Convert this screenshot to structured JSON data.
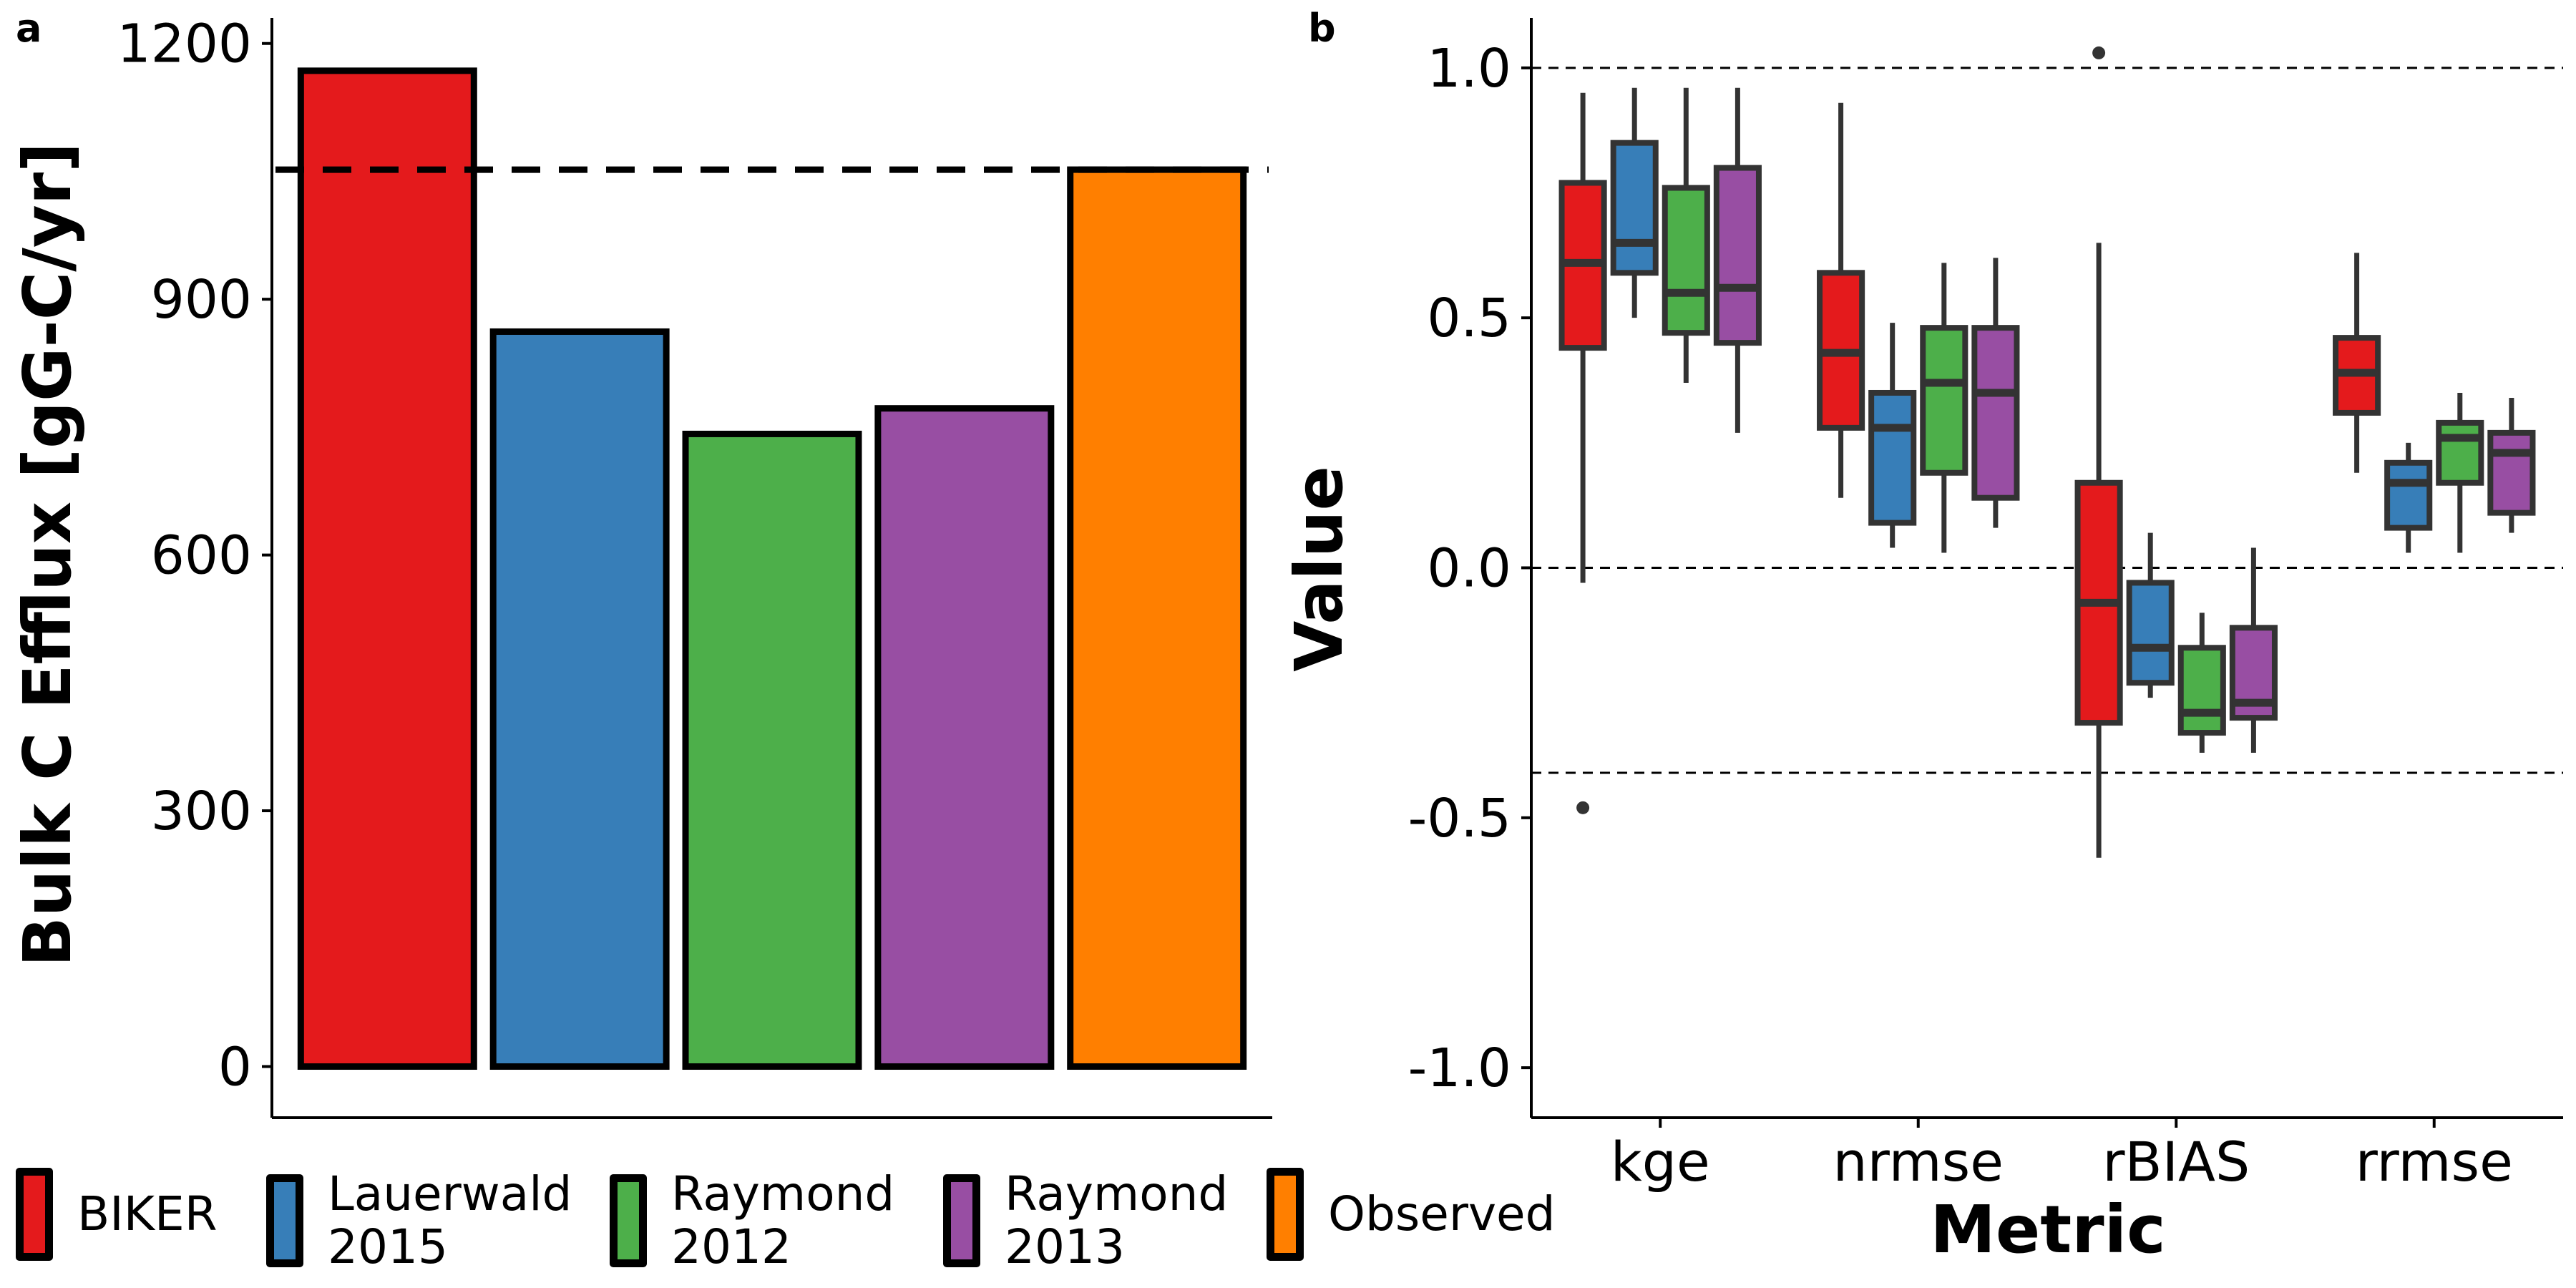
{
  "chart_data": [
    {
      "panel_label": "a",
      "type": "bar",
      "ylabel": "Bulk C Efflux [gG-C/yr]",
      "xlabel": "",
      "ylim": [
        -60,
        1230
      ],
      "yticks": [
        0,
        300,
        600,
        900,
        1200
      ],
      "ytick_labels": [
        "0",
        "300",
        "600",
        "900",
        "1200"
      ],
      "categories": [
        "BIKER",
        "Lauerwald 2015",
        "Raymond 2012",
        "Raymond 2013",
        "Observed"
      ],
      "values": [
        1168,
        862,
        742,
        772,
        1052
      ],
      "colors": [
        "#e41a1c",
        "#377eb8",
        "#4daf4a",
        "#984ea3",
        "#ff7f00"
      ],
      "reference_line": 1052,
      "grid": false
    },
    {
      "panel_label": "b",
      "type": "box",
      "xlabel": "Metric",
      "ylabel": "Value",
      "ylim": [
        -1.1,
        1.1
      ],
      "yticks": [
        -1.0,
        -0.5,
        0.0,
        0.5,
        1.0
      ],
      "ytick_labels": [
        "-1.0",
        "-0.5",
        "0.0",
        "0.5",
        "1.0"
      ],
      "categories": [
        "kge",
        "nrmse",
        "rBIAS",
        "rrmse"
      ],
      "reference_lines": [
        1.0,
        0.0,
        -0.41
      ],
      "grid": false,
      "series": [
        {
          "name": "BIKER",
          "color": "#e41a1c",
          "boxes": [
            {
              "whislo": -0.03,
              "q1": 0.44,
              "med": 0.61,
              "q3": 0.77,
              "whishi": 0.95,
              "fliers": [
                -0.48
              ]
            },
            {
              "whislo": 0.14,
              "q1": 0.28,
              "med": 0.43,
              "q3": 0.59,
              "whishi": 0.93,
              "fliers": []
            },
            {
              "whislo": -0.58,
              "q1": -0.31,
              "med": -0.07,
              "q3": 0.17,
              "whishi": 0.65,
              "fliers": [
                1.03
              ]
            },
            {
              "whislo": 0.19,
              "q1": 0.31,
              "med": 0.39,
              "q3": 0.46,
              "whishi": 0.63,
              "fliers": []
            }
          ]
        },
        {
          "name": "Lauerwald 2015",
          "color": "#377eb8",
          "boxes": [
            {
              "whislo": 0.5,
              "q1": 0.59,
              "med": 0.65,
              "q3": 0.85,
              "whishi": 0.96,
              "fliers": []
            },
            {
              "whislo": 0.04,
              "q1": 0.09,
              "med": 0.28,
              "q3": 0.35,
              "whishi": 0.49,
              "fliers": []
            },
            {
              "whislo": -0.26,
              "q1": -0.23,
              "med": -0.16,
              "q3": -0.03,
              "whishi": 0.07,
              "fliers": []
            },
            {
              "whislo": 0.03,
              "q1": 0.08,
              "med": 0.17,
              "q3": 0.21,
              "whishi": 0.25,
              "fliers": []
            }
          ]
        },
        {
          "name": "Raymond 2012",
          "color": "#4daf4a",
          "boxes": [
            {
              "whislo": 0.37,
              "q1": 0.47,
              "med": 0.55,
              "q3": 0.76,
              "whishi": 0.96,
              "fliers": []
            },
            {
              "whislo": 0.03,
              "q1": 0.19,
              "med": 0.37,
              "q3": 0.48,
              "whishi": 0.61,
              "fliers": []
            },
            {
              "whislo": -0.37,
              "q1": -0.33,
              "med": -0.29,
              "q3": -0.16,
              "whishi": -0.09,
              "fliers": []
            },
            {
              "whislo": 0.03,
              "q1": 0.17,
              "med": 0.26,
              "q3": 0.29,
              "whishi": 0.35,
              "fliers": []
            }
          ]
        },
        {
          "name": "Raymond 2013",
          "color": "#984ea3",
          "boxes": [
            {
              "whislo": 0.27,
              "q1": 0.45,
              "med": 0.56,
              "q3": 0.8,
              "whishi": 0.96,
              "fliers": []
            },
            {
              "whislo": 0.08,
              "q1": 0.14,
              "med": 0.35,
              "q3": 0.48,
              "whishi": 0.62,
              "fliers": []
            },
            {
              "whislo": -0.37,
              "q1": -0.3,
              "med": -0.27,
              "q3": -0.12,
              "whishi": 0.04,
              "fliers": []
            },
            {
              "whislo": 0.07,
              "q1": 0.11,
              "med": 0.23,
              "q3": 0.27,
              "whishi": 0.34,
              "fliers": []
            }
          ]
        }
      ]
    }
  ],
  "legend": {
    "placement": "bottom",
    "items": [
      {
        "label": "BIKER",
        "color": "#e41a1c"
      },
      {
        "label": "Lauerwald\n2015",
        "color": "#377eb8"
      },
      {
        "label": "Raymond\n2012",
        "color": "#4daf4a"
      },
      {
        "label": "Raymond\n2013",
        "color": "#984ea3"
      },
      {
        "label": "Observed",
        "color": "#ff7f00"
      }
    ]
  }
}
